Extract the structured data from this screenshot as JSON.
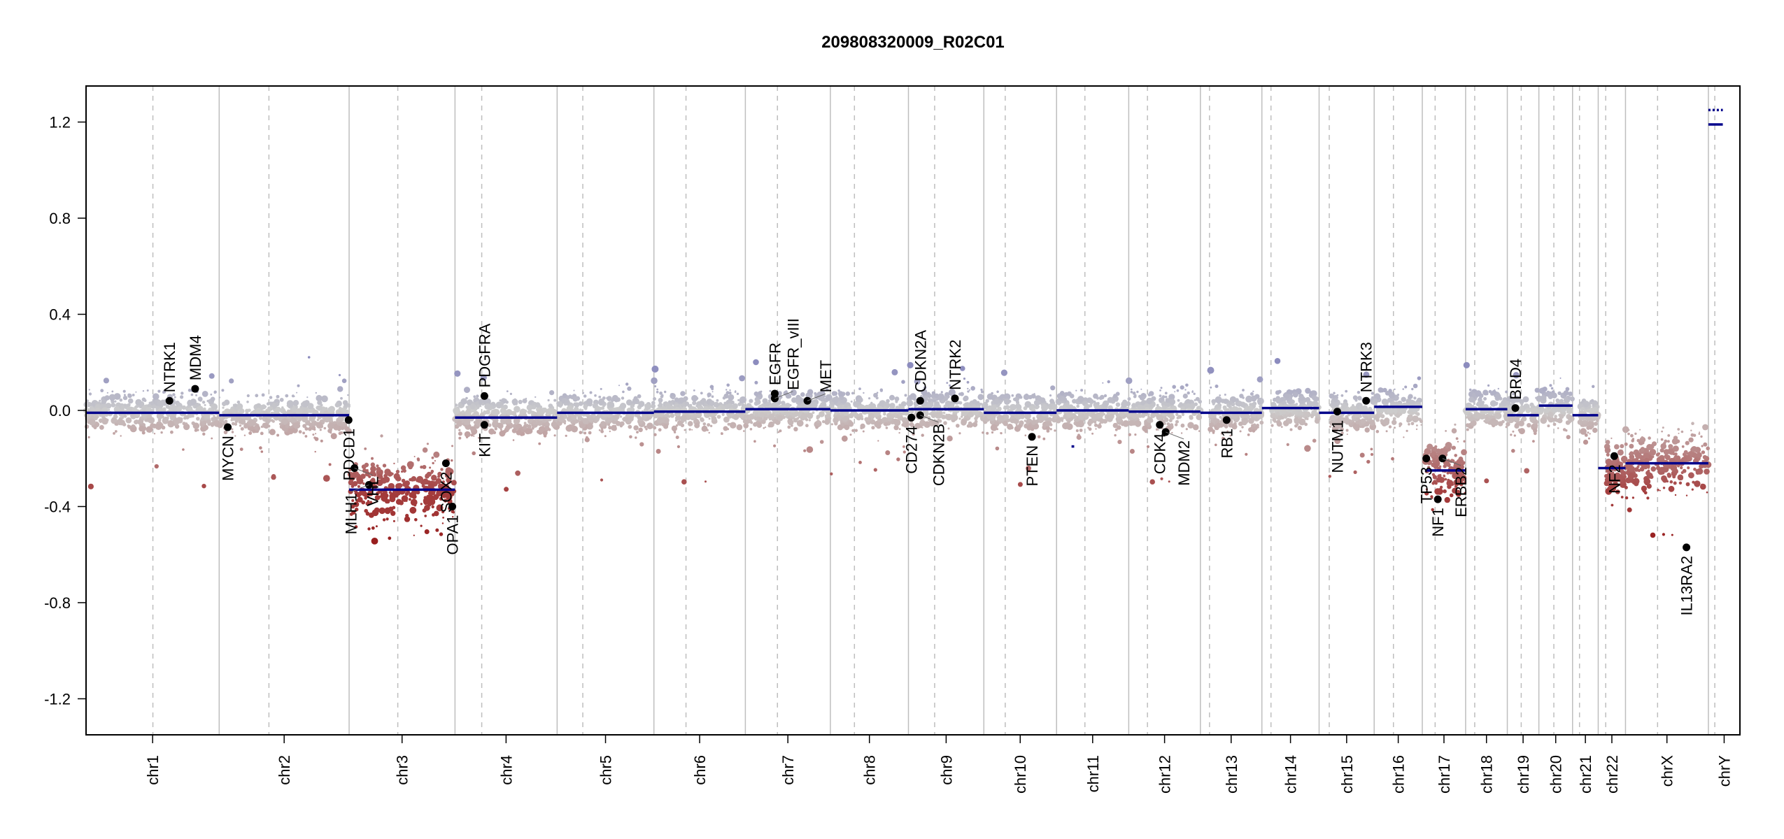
{
  "chart_data": {
    "type": "scatter",
    "title": "209808320009_R02C01",
    "xlabel": "",
    "ylabel": "",
    "ylim": [
      -1.35,
      1.35
    ],
    "yticks": [
      "1.2",
      "0.8",
      "0.4",
      "0.0",
      "-0.4",
      "-0.8",
      "-1.2"
    ],
    "grid": false,
    "chromosomes": [
      {
        "name": "chr1",
        "length": 249,
        "centromere": 125
      },
      {
        "name": "chr2",
        "length": 243,
        "centromere": 93
      },
      {
        "name": "chr3",
        "length": 198,
        "centromere": 91
      },
      {
        "name": "chr4",
        "length": 191,
        "centromere": 50
      },
      {
        "name": "chr5",
        "length": 181,
        "centromere": 48
      },
      {
        "name": "chr6",
        "length": 171,
        "centromere": 60
      },
      {
        "name": "chr7",
        "length": 159,
        "centromere": 60
      },
      {
        "name": "chr8",
        "length": 146,
        "centromere": 45
      },
      {
        "name": "chr9",
        "length": 141,
        "centromere": 49
      },
      {
        "name": "chr10",
        "length": 136,
        "centromere": 40
      },
      {
        "name": "chr11",
        "length": 135,
        "centromere": 53
      },
      {
        "name": "chr12",
        "length": 134,
        "centromere": 35
      },
      {
        "name": "chr13",
        "length": 115,
        "centromere": 17
      },
      {
        "name": "chr14",
        "length": 107,
        "centromere": 17
      },
      {
        "name": "chr15",
        "length": 103,
        "centromere": 19
      },
      {
        "name": "chr16",
        "length": 90,
        "centromere": 36
      },
      {
        "name": "chr17",
        "length": 81,
        "centromere": 24
      },
      {
        "name": "chr18",
        "length": 78,
        "centromere": 17
      },
      {
        "name": "chr19",
        "length": 59,
        "centromere": 26
      },
      {
        "name": "chr20",
        "length": 63,
        "centromere": 28
      },
      {
        "name": "chr21",
        "length": 48,
        "centromere": 13
      },
      {
        "name": "chr22",
        "length": 51,
        "centromere": 14
      },
      {
        "name": "chrX",
        "length": 155,
        "centromere": 60
      },
      {
        "name": "chrY",
        "length": 59,
        "centromere": 12
      }
    ],
    "segments": [
      {
        "chr": "chr1",
        "start": 0,
        "end": 249,
        "value": -0.01
      },
      {
        "chr": "chr2",
        "start": 0,
        "end": 243,
        "value": -0.02
      },
      {
        "chr": "chr3",
        "start": 0,
        "end": 198,
        "value": -0.33
      },
      {
        "chr": "chr4",
        "start": 0,
        "end": 191,
        "value": -0.03
      },
      {
        "chr": "chr5",
        "start": 0,
        "end": 181,
        "value": -0.01
      },
      {
        "chr": "chr6",
        "start": 0,
        "end": 171,
        "value": -0.005
      },
      {
        "chr": "chr7",
        "start": 0,
        "end": 159,
        "value": 0.005
      },
      {
        "chr": "chr8",
        "start": 0,
        "end": 146,
        "value": 0.0
      },
      {
        "chr": "chr9",
        "start": 0,
        "end": 141,
        "value": 0.005
      },
      {
        "chr": "chr10",
        "start": 0,
        "end": 136,
        "value": -0.01
      },
      {
        "chr": "chr11",
        "start": 0,
        "end": 135,
        "value": 0.0
      },
      {
        "chr": "chr11",
        "start": 28,
        "end": 33,
        "value": -0.15
      },
      {
        "chr": "chr12",
        "start": 0,
        "end": 134,
        "value": -0.005
      },
      {
        "chr": "chr13",
        "start": 0,
        "end": 115,
        "value": -0.01
      },
      {
        "chr": "chr14",
        "start": 0,
        "end": 107,
        "value": 0.01
      },
      {
        "chr": "chr15",
        "start": 0,
        "end": 103,
        "value": -0.01
      },
      {
        "chr": "chr16",
        "start": 0,
        "end": 90,
        "value": 0.015
      },
      {
        "chr": "chr17",
        "start": 5,
        "end": 81,
        "value": -0.25
      },
      {
        "chr": "chr18",
        "start": 0,
        "end": 78,
        "value": 0.005
      },
      {
        "chr": "chr19",
        "start": 0,
        "end": 59,
        "value": -0.02
      },
      {
        "chr": "chr20",
        "start": 0,
        "end": 63,
        "value": 0.02
      },
      {
        "chr": "chr21",
        "start": 0,
        "end": 48,
        "value": -0.02
      },
      {
        "chr": "chr22",
        "start": 0,
        "end": 51,
        "value": -0.24
      },
      {
        "chr": "chrX",
        "start": 0,
        "end": 155,
        "value": -0.22
      },
      {
        "chr": "chrY",
        "start": 0,
        "end": 27,
        "value": 1.19
      },
      {
        "chr": "chrY",
        "start": 0,
        "end": 27,
        "value": 1.25,
        "dotted": true
      }
    ],
    "genes": [
      {
        "name": "NTRK1",
        "chr": "chr1",
        "pos": 156,
        "value": 0.04
      },
      {
        "name": "MDM4",
        "chr": "chr1",
        "pos": 204,
        "value": 0.09
      },
      {
        "name": "MYCN",
        "chr": "chr2",
        "pos": 16,
        "value": -0.07
      },
      {
        "name": "PDCD1",
        "chr": "chr2",
        "pos": 242,
        "value": -0.04
      },
      {
        "name": "VHL",
        "chr": "chr3",
        "pos": 10,
        "value": -0.24
      },
      {
        "name": "MLH1",
        "chr": "chr3",
        "pos": 37,
        "value": -0.31
      },
      {
        "name": "SOX2",
        "chr": "chr3",
        "pos": 181,
        "value": -0.22
      },
      {
        "name": "OPA1",
        "chr": "chr3",
        "pos": 193,
        "value": -0.4
      },
      {
        "name": "PDGFRA",
        "chr": "chr4",
        "pos": 55,
        "value": 0.06
      },
      {
        "name": "KIT",
        "chr": "chr4",
        "pos": 55,
        "value": -0.06
      },
      {
        "name": "EGFR",
        "chr": "chr7",
        "pos": 55,
        "value": 0.07
      },
      {
        "name": "EGFR_vIII",
        "chr": "chr7",
        "pos": 55,
        "value": 0.05
      },
      {
        "name": "MET",
        "chr": "chr7",
        "pos": 116,
        "value": 0.04
      },
      {
        "name": "CD274",
        "chr": "chr9",
        "pos": 5.5,
        "value": -0.03
      },
      {
        "name": "CDKN2A",
        "chr": "chr9",
        "pos": 22,
        "value": 0.04
      },
      {
        "name": "CDKN2B",
        "chr": "chr9",
        "pos": 22,
        "value": -0.02
      },
      {
        "name": "NTRK2",
        "chr": "chr9",
        "pos": 87,
        "value": 0.05
      },
      {
        "name": "PTEN",
        "chr": "chr10",
        "pos": 90,
        "value": -0.11
      },
      {
        "name": "CDK4",
        "chr": "chr12",
        "pos": 58,
        "value": -0.06
      },
      {
        "name": "MDM2",
        "chr": "chr12",
        "pos": 69,
        "value": -0.09
      },
      {
        "name": "RB1",
        "chr": "chr13",
        "pos": 49,
        "value": -0.04
      },
      {
        "name": "NUTM1",
        "chr": "chr15",
        "pos": 34,
        "value": -0.005
      },
      {
        "name": "NTRK3",
        "chr": "chr15",
        "pos": 88,
        "value": 0.04
      },
      {
        "name": "TP53",
        "chr": "chr17",
        "pos": 7.5,
        "value": -0.2
      },
      {
        "name": "NF1",
        "chr": "chr17",
        "pos": 29,
        "value": -0.37
      },
      {
        "name": "ERBB2",
        "chr": "chr17",
        "pos": 37.8,
        "value": -0.2
      },
      {
        "name": "BRD4",
        "chr": "chr19",
        "pos": 15,
        "value": 0.01
      },
      {
        "name": "NF2",
        "chr": "chr22",
        "pos": 30,
        "value": -0.19
      },
      {
        "name": "IL13RA2",
        "chr": "chrX",
        "pos": 114,
        "value": -0.57
      }
    ],
    "colors": {
      "segment": "#00008b",
      "gain": "#8c8cbe",
      "neutral": "#cccccc",
      "loss": "#a33a3a",
      "deep_loss": "#8b0000",
      "chr_border": "#bebebe",
      "centromere": "#bebebe"
    }
  }
}
